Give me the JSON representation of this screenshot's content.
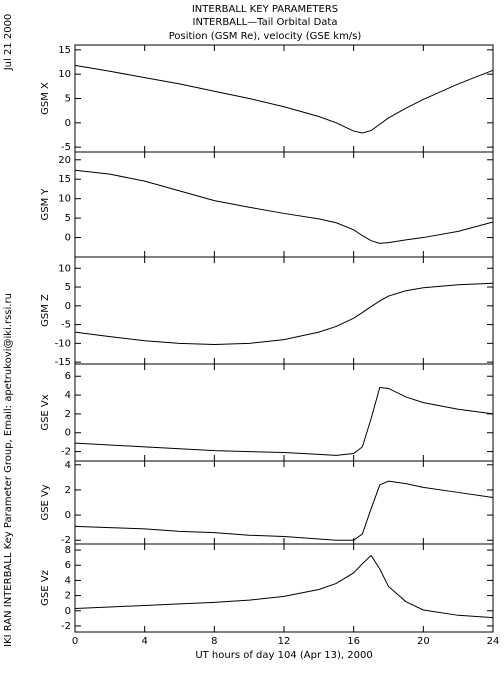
{
  "header": {
    "title_lines": [
      "INTERBALL KEY PARAMETERS",
      "INTERBALL—Tail Orbital Data",
      "Position (GSM Re), velocity (GSE km/s)"
    ],
    "date": "Jul 21 2000",
    "credit": "IKI RAN INTERBALL Key Parameter Group, Email: apetrukovi@iki.rssi.ru"
  },
  "chart_data": [
    {
      "type": "line",
      "ylabel": "GSM X",
      "x": [
        0,
        2,
        4,
        6,
        8,
        10,
        12,
        14,
        15,
        16,
        16.5,
        17,
        17.5,
        18,
        19,
        20,
        22,
        24
      ],
      "values": [
        11.8,
        10.6,
        9.3,
        8,
        6.5,
        5,
        3.3,
        1.3,
        0,
        -1.7,
        -2.1,
        -1.6,
        -0.3,
        1,
        3,
        4.8,
        8,
        10.8
      ],
      "xlim": [
        0,
        24
      ],
      "xticks": [
        0,
        4,
        8,
        12,
        16,
        20,
        24
      ],
      "ylim": [
        -6,
        16
      ],
      "yticks": [
        -5,
        0,
        5,
        10,
        15
      ],
      "color": "#000000"
    },
    {
      "type": "line",
      "ylabel": "GSM Y",
      "x": [
        0,
        2,
        4,
        6,
        8,
        10,
        12,
        14,
        15,
        16,
        16.5,
        17,
        17.5,
        18,
        19,
        20,
        22,
        24
      ],
      "values": [
        17.3,
        16.3,
        14.5,
        12,
        9.5,
        7.8,
        6.2,
        4.8,
        3.8,
        2,
        0.5,
        -0.8,
        -1.5,
        -1.3,
        -0.6,
        0,
        1.6,
        4
      ],
      "xlim": [
        0,
        24
      ],
      "xticks": [
        0,
        4,
        8,
        12,
        16,
        20,
        24
      ],
      "ylim": [
        -5,
        22
      ],
      "yticks": [
        0,
        5,
        10,
        15,
        20
      ],
      "color": "#000000"
    },
    {
      "type": "line",
      "ylabel": "GSM Z",
      "x": [
        0,
        2,
        4,
        6,
        8,
        10,
        12,
        14,
        15,
        16,
        16.5,
        17,
        17.5,
        18,
        19,
        20,
        22,
        24
      ],
      "values": [
        -7,
        -8.2,
        -9.3,
        -10,
        -10.3,
        -10,
        -9,
        -7,
        -5.5,
        -3.3,
        -1.8,
        -0.2,
        1.3,
        2.6,
        4,
        4.8,
        5.6,
        6
      ],
      "xlim": [
        0,
        24
      ],
      "xticks": [
        0,
        4,
        8,
        12,
        16,
        20,
        24
      ],
      "ylim": [
        -15.5,
        13
      ],
      "yticks": [
        -15,
        -10,
        -5,
        0,
        5,
        10
      ],
      "color": "#000000"
    },
    {
      "type": "line",
      "ylabel": "GSE Vx",
      "x": [
        0,
        2,
        4,
        6,
        8,
        10,
        12,
        14,
        15,
        16,
        16.5,
        17,
        17.5,
        18,
        19,
        20,
        22,
        24
      ],
      "values": [
        -1.1,
        -1.3,
        -1.5,
        -1.7,
        -1.9,
        -2,
        -2.1,
        -2.3,
        -2.4,
        -2.2,
        -1.5,
        1.5,
        4.8,
        4.7,
        3.8,
        3.2,
        2.5,
        2
      ],
      "xlim": [
        0,
        24
      ],
      "xticks": [
        0,
        4,
        8,
        12,
        16,
        20,
        24
      ],
      "ylim": [
        -3,
        7.3
      ],
      "yticks": [
        -2,
        0,
        2,
        4,
        6
      ],
      "color": "#000000"
    },
    {
      "type": "line",
      "ylabel": "GSE Vy",
      "x": [
        0,
        2,
        4,
        6,
        8,
        10,
        12,
        14,
        15,
        16,
        16.5,
        17,
        17.5,
        18,
        19,
        20,
        22,
        24
      ],
      "values": [
        -0.9,
        -1,
        -1.1,
        -1.3,
        -1.4,
        -1.6,
        -1.7,
        -1.9,
        -2,
        -2,
        -1.5,
        0.5,
        2.4,
        2.7,
        2.5,
        2.2,
        1.8,
        1.4
      ],
      "xlim": [
        0,
        24
      ],
      "xticks": [
        0,
        4,
        8,
        12,
        16,
        20,
        24
      ],
      "ylim": [
        -2.3,
        4.3
      ],
      "yticks": [
        -2,
        0,
        2,
        4
      ],
      "color": "#000000"
    },
    {
      "type": "line",
      "ylabel": "GSE Vz",
      "xlabel": "UT hours of day 104 (Apr 13), 2000",
      "x": [
        0,
        2,
        4,
        6,
        8,
        10,
        12,
        14,
        15,
        16,
        16.5,
        17,
        17.5,
        18,
        19,
        20,
        22,
        24
      ],
      "values": [
        0.3,
        0.5,
        0.7,
        0.9,
        1.1,
        1.4,
        1.9,
        2.8,
        3.6,
        5,
        6.2,
        7.3,
        5.5,
        3.2,
        1.2,
        0.1,
        -0.6,
        -0.9
      ],
      "xlim": [
        0,
        24
      ],
      "xticks": [
        0,
        4,
        8,
        12,
        16,
        20,
        24
      ],
      "ylim": [
        -2.8,
        8.8
      ],
      "yticks": [
        -2,
        0,
        2,
        4,
        6,
        8
      ],
      "color": "#000000"
    }
  ]
}
